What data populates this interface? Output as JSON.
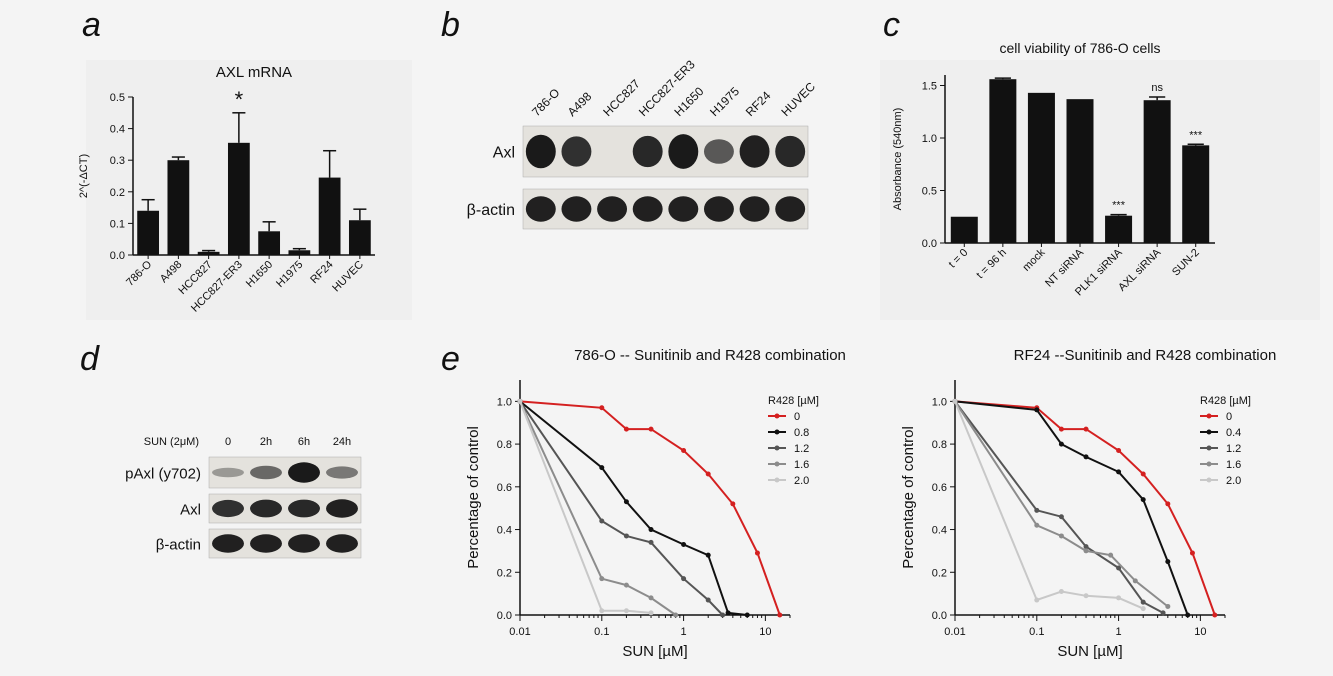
{
  "panel_labels": {
    "a": "a",
    "b": "b",
    "c": "c",
    "d": "d",
    "e": "e"
  },
  "colors": {
    "bar": "#111111",
    "blot_bg": "#e4e2dd",
    "band": "#1a1a1a",
    "red": "#d42020"
  },
  "chart_data": [
    {
      "panel": "a",
      "type": "bar",
      "title": "AXL mRNA",
      "ylabel": "2^(-ΔCT)",
      "xlabel": "",
      "categories": [
        "786-O",
        "A498",
        "HCC827",
        "HCC827-ER3",
        "H1650",
        "H1975",
        "RF24",
        "HUVEC"
      ],
      "values": [
        0.14,
        0.3,
        0.01,
        0.355,
        0.075,
        0.015,
        0.245,
        0.11
      ],
      "errors": [
        0.035,
        0.01,
        0.004,
        0.095,
        0.03,
        0.005,
        0.085,
        0.035
      ],
      "annotations": [
        {
          "category": "HCC827-ER3",
          "text": "*"
        }
      ],
      "ylim": [
        0,
        0.5
      ],
      "yticks": [
        "0.0",
        "0.1",
        "0.2",
        "0.3",
        "0.4",
        "0.5"
      ]
    },
    {
      "panel": "c",
      "type": "bar",
      "title": "cell viability of 786-O cells",
      "ylabel": "Absorbance (540nm)",
      "xlabel": "",
      "categories": [
        "t = 0",
        "t = 96 h",
        "mock",
        "NT siRNA",
        "PLK1 siRNA",
        "AXL siRNA",
        "SUN-2"
      ],
      "values": [
        0.25,
        1.56,
        1.43,
        1.37,
        0.26,
        1.36,
        0.93
      ],
      "errors": [
        0,
        0.01,
        0,
        0,
        0.01,
        0.03,
        0.01
      ],
      "annotations": [
        {
          "category": "PLK1 siRNA",
          "text": "***"
        },
        {
          "category": "AXL siRNA",
          "text": "ns"
        },
        {
          "category": "SUN-2",
          "text": "***"
        }
      ],
      "ylim": [
        0,
        1.6
      ],
      "yticks": [
        "0.0",
        "0.5",
        "1.0",
        "1.5"
      ]
    },
    {
      "panel": "e",
      "type": "line",
      "title": "786-O -- Sunitinib and R428 combination",
      "xlabel": "SUN [µM]",
      "ylabel": "Percentage of control",
      "xscale": "log",
      "xlim": [
        0.01,
        20
      ],
      "ylim": [
        0,
        1.1
      ],
      "xticks": [
        "0.01",
        "0.1",
        "1",
        "10"
      ],
      "yticks": [
        "0.0",
        "0.2",
        "0.4",
        "0.6",
        "0.8",
        "1.0"
      ],
      "legend_title": "R428 [µM]",
      "legend_position": "top-right",
      "series": [
        {
          "name": "0",
          "color": "#d42020",
          "x": [
            0.01,
            0.1,
            0.2,
            0.4,
            1,
            2,
            4,
            8,
            15
          ],
          "y": [
            1.0,
            0.97,
            0.87,
            0.87,
            0.77,
            0.66,
            0.52,
            0.29,
            0.0
          ]
        },
        {
          "name": "0.8",
          "color": "#111111",
          "x": [
            0.01,
            0.1,
            0.2,
            0.4,
            1,
            2,
            3.5,
            6
          ],
          "y": [
            1.0,
            0.69,
            0.53,
            0.4,
            0.33,
            0.28,
            0.01,
            0.0
          ]
        },
        {
          "name": "1.2",
          "color": "#555555",
          "x": [
            0.01,
            0.1,
            0.2,
            0.4,
            1,
            2,
            3
          ],
          "y": [
            1.0,
            0.44,
            0.37,
            0.34,
            0.17,
            0.07,
            0.0
          ]
        },
        {
          "name": "1.6",
          "color": "#8c8c8c",
          "x": [
            0.01,
            0.1,
            0.2,
            0.4,
            0.8
          ],
          "y": [
            1.0,
            0.17,
            0.14,
            0.08,
            0.0
          ]
        },
        {
          "name": "2.0",
          "color": "#c8c8c8",
          "x": [
            0.01,
            0.1,
            0.2,
            0.4
          ],
          "y": [
            1.0,
            0.02,
            0.02,
            0.01
          ]
        }
      ]
    },
    {
      "panel": "e",
      "type": "line",
      "title": "RF24 --Sunitinib and R428 combination",
      "xlabel": "SUN [µM]",
      "ylabel": "Percentage of control",
      "xscale": "log",
      "xlim": [
        0.01,
        20
      ],
      "ylim": [
        0,
        1.1
      ],
      "xticks": [
        "0.01",
        "0.1",
        "1",
        "10"
      ],
      "yticks": [
        "0.0",
        "0.2",
        "0.4",
        "0.6",
        "0.8",
        "1.0"
      ],
      "legend_title": "R428 [µM]",
      "legend_position": "top-right",
      "series": [
        {
          "name": "0",
          "color": "#d42020",
          "x": [
            0.01,
            0.1,
            0.2,
            0.4,
            1,
            2,
            4,
            8,
            15
          ],
          "y": [
            1.0,
            0.97,
            0.87,
            0.87,
            0.77,
            0.66,
            0.52,
            0.29,
            0.0
          ]
        },
        {
          "name": "0.4",
          "color": "#111111",
          "x": [
            0.01,
            0.1,
            0.2,
            0.4,
            1,
            2,
            4,
            7
          ],
          "y": [
            1.0,
            0.96,
            0.8,
            0.74,
            0.67,
            0.54,
            0.25,
            0.0
          ]
        },
        {
          "name": "1.2",
          "color": "#555555",
          "x": [
            0.01,
            0.1,
            0.2,
            0.4,
            1,
            2,
            3.5
          ],
          "y": [
            1.0,
            0.49,
            0.46,
            0.32,
            0.22,
            0.06,
            0.01
          ]
        },
        {
          "name": "1.6",
          "color": "#8c8c8c",
          "x": [
            0.01,
            0.1,
            0.2,
            0.4,
            0.8,
            1.6,
            4
          ],
          "y": [
            1.0,
            0.42,
            0.37,
            0.3,
            0.28,
            0.16,
            0.04
          ]
        },
        {
          "name": "2.0",
          "color": "#c8c8c8",
          "x": [
            0.01,
            0.1,
            0.2,
            0.4,
            1,
            2
          ],
          "y": [
            1.0,
            0.07,
            0.11,
            0.09,
            0.08,
            0.03
          ]
        }
      ]
    }
  ],
  "blot_b": {
    "lanes": [
      "786-O",
      "A498",
      "HCC827",
      "HCC827-ER3",
      "H1650",
      "H1975",
      "RF24",
      "HUVEC"
    ],
    "rows": [
      {
        "label": "Axl",
        "intensity": [
          0.95,
          0.8,
          0.0,
          0.85,
          1.0,
          0.55,
          0.9,
          0.85
        ]
      },
      {
        "label": "β-actin",
        "intensity": [
          0.9,
          0.9,
          0.9,
          0.9,
          0.9,
          0.9,
          0.9,
          0.9
        ]
      }
    ]
  },
  "blot_d": {
    "treatment_label": "SUN (2μM)",
    "lanes": [
      "0",
      "2h",
      "6h",
      "24h"
    ],
    "rows": [
      {
        "label": "pAxl (y702)",
        "intensity": [
          0.15,
          0.45,
          0.95,
          0.35
        ]
      },
      {
        "label": "Axl",
        "intensity": [
          0.8,
          0.85,
          0.85,
          0.9
        ]
      },
      {
        "label": "β-actin",
        "intensity": [
          0.9,
          0.9,
          0.9,
          0.9
        ]
      }
    ]
  }
}
